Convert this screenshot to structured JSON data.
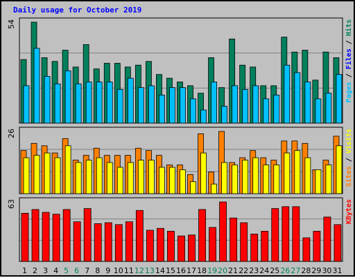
{
  "title": "Daily usage for October 2019",
  "colors": {
    "hits": "#00805c",
    "files": "#00c0ff",
    "sites": "#ffff00",
    "visits": "#ff8000",
    "kbytes": "#ff0000",
    "title": "#0000ff",
    "weekend_day": "#00805c",
    "panel_bg": "#c0c0c0",
    "gridline": "#808080"
  },
  "chart_data": [
    {
      "type": "bar",
      "panel": "pages-files-hits",
      "max_label": "54",
      "axis_label_parts": [
        {
          "text": "Pages",
          "color": "#00c0ff"
        },
        {
          "text": " / ",
          "color": "#000000"
        },
        {
          "text": "Files",
          "color": "#0000ff"
        },
        {
          "text": " / ",
          "color": "#000000"
        },
        {
          "text": "Hits",
          "color": "#00805c"
        }
      ],
      "ylim": [
        0,
        54
      ],
      "series": [
        {
          "name": "Hits",
          "color": "#00805c",
          "values": [
            34,
            54,
            35,
            33,
            39,
            30,
            42,
            29,
            32,
            32,
            30,
            31,
            33,
            26,
            24,
            22,
            20,
            16,
            35,
            19,
            45,
            31,
            30,
            20,
            20,
            46,
            38,
            39,
            23,
            38,
            35
          ]
        },
        {
          "name": "Files",
          "color": "#00c0ff",
          "values": [
            20,
            40,
            25,
            21,
            28,
            21,
            22,
            22,
            22,
            18,
            24,
            19,
            20,
            15,
            19,
            19,
            13,
            7,
            22,
            9,
            20,
            18,
            20,
            13,
            15,
            31,
            27,
            22,
            13,
            16,
            26
          ]
        }
      ]
    },
    {
      "type": "bar",
      "panel": "sites-visits",
      "max_label": "26",
      "axis_label_parts": [
        {
          "text": "Sites",
          "color": "#ff8000"
        },
        {
          "text": " / ",
          "color": "#000000"
        },
        {
          "text": "Visits",
          "color": "#ffff00"
        }
      ],
      "ylim": [
        0,
        26
      ],
      "series": [
        {
          "name": "Visits",
          "color": "#ff8000",
          "values": [
            18,
            21,
            20,
            17,
            23,
            14,
            16,
            19,
            16,
            16,
            16,
            19,
            18,
            16,
            12,
            12,
            8,
            25,
            9,
            26,
            13,
            15,
            18,
            15,
            14,
            22,
            22,
            21,
            10,
            14,
            24
          ]
        },
        {
          "name": "Sites",
          "color": "#ffff00",
          "values": [
            15,
            16,
            17,
            15,
            20,
            13,
            14,
            15,
            13,
            11,
            13,
            14,
            14,
            11,
            11,
            10,
            5,
            17,
            4,
            13,
            12,
            14,
            15,
            12,
            12,
            17,
            18,
            15,
            10,
            12,
            20
          ]
        }
      ]
    },
    {
      "type": "bar",
      "panel": "kbytes",
      "max_label": "63",
      "axis_label_parts": [
        {
          "text": "KBytes",
          "color": "#ff0000"
        }
      ],
      "ylim": [
        0,
        63
      ],
      "series": [
        {
          "name": "KBytes",
          "color": "#ff0000",
          "values": [
            51,
            55,
            52,
            50,
            55,
            42,
            56,
            40,
            41,
            39,
            42,
            54,
            33,
            35,
            32,
            27,
            28,
            55,
            36,
            63,
            46,
            41,
            29,
            32,
            56,
            58,
            58,
            25,
            32,
            47,
            39
          ]
        }
      ]
    }
  ],
  "x_axis": {
    "labels": [
      "1",
      "2",
      "3",
      "4",
      "5",
      "6",
      "7",
      "8",
      "9",
      "10",
      "11",
      "12",
      "13",
      "14",
      "15",
      "16",
      "17",
      "18",
      "19",
      "20",
      "21",
      "22",
      "23",
      "24",
      "25",
      "26",
      "27",
      "28",
      "29",
      "30",
      "31"
    ],
    "weekend": [
      false,
      false,
      false,
      false,
      true,
      true,
      false,
      false,
      false,
      false,
      false,
      true,
      true,
      false,
      false,
      false,
      false,
      false,
      true,
      true,
      false,
      false,
      false,
      false,
      false,
      true,
      true,
      false,
      false,
      false,
      false
    ]
  }
}
